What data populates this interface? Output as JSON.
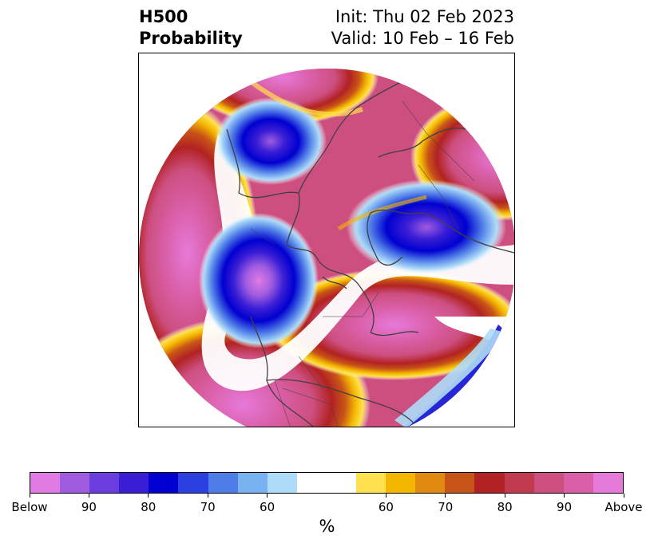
{
  "header": {
    "title_line1": "H500",
    "title_line2": "Probability",
    "init": "Init: Thu 02 Feb 2023",
    "valid": "Valid: 10 Feb – 16 Feb"
  },
  "colorbar": {
    "unit": "%",
    "below_colors": [
      "#e07be3",
      "#a05ce0",
      "#6a3ede",
      "#3a1ed6",
      "#0000d0",
      "#2a40e0",
      "#4f7de8",
      "#78b2f0",
      "#aedcf8"
    ],
    "neutral_color": "#ffffff",
    "above_colors": [
      "#ffe14d",
      "#f4b700",
      "#e08a12",
      "#c85418",
      "#b22222",
      "#c23a4e",
      "#cd4f80",
      "#da5fa8",
      "#e67ada"
    ],
    "ticks": [
      "Below",
      "90",
      "80",
      "70",
      "60",
      "60",
      "70",
      "80",
      "90",
      "Above"
    ]
  },
  "palette": {
    "coast": "#404040",
    "pink": "#cd4f80",
    "magenta": "#e67ada",
    "blue": "#0000d0"
  }
}
